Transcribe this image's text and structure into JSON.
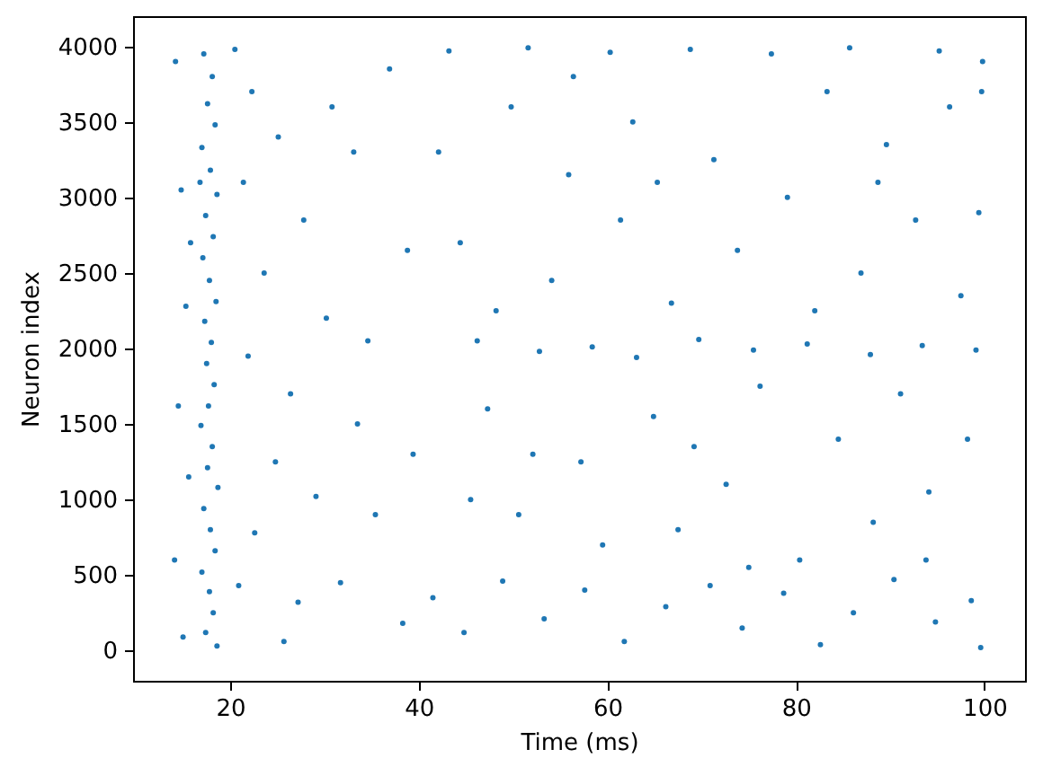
{
  "chart_data": {
    "type": "scatter",
    "xlabel": "Time (ms)",
    "ylabel": "Neuron index",
    "color": "#1f77b4",
    "marker": "circle",
    "x": [
      17.2,
      18.1,
      17.6,
      18.4,
      17.0,
      17.9,
      18.6,
      17.4,
      18.2,
      17.1,
      17.8,
      18.5,
      17.3,
      18.0,
      17.5,
      18.3,
      17.7,
      16.9,
      18.1,
      17.6,
      18.7,
      17.2,
      17.9,
      18.4,
      17.0,
      17.8,
      18.2,
      17.4,
      18.6,
      16.8,
      14.2,
      14.8,
      15.3,
      14.5,
      15.6,
      14.1,
      15.0,
      15.8,
      20.5,
      22.3,
      25.1,
      21.4,
      27.8,
      23.6,
      30.2,
      21.9,
      26.4,
      33.5,
      24.8,
      29.1,
      22.6,
      35.4,
      31.7,
      27.2,
      38.3,
      36.9,
      33.1,
      38.8,
      34.6,
      20.9,
      25.7,
      39.4,
      30.8,
      46.2,
      52.8,
      58.4,
      63.1,
      69.7,
      75.5,
      81.2,
      87.9,
      93.4,
      99.1,
      41.5,
      44.8,
      48.9,
      53.3,
      57.6,
      61.8,
      66.2,
      70.9,
      74.3,
      78.7,
      82.6,
      86.1,
      90.4,
      94.8,
      98.6,
      99.6,
      43.2,
      51.6,
      60.3,
      68.8,
      77.4,
      85.7,
      95.2,
      99.8,
      42.1,
      44.4,
      47.3,
      49.8,
      50.6,
      54.1,
      55.9,
      57.2,
      59.5,
      61.4,
      62.7,
      64.9,
      66.8,
      67.5,
      71.3,
      72.6,
      73.8,
      76.2,
      79.1,
      80.4,
      83.3,
      84.5,
      86.9,
      88.2,
      89.6,
      91.1,
      92.7,
      94.1,
      96.3,
      97.5,
      98.2,
      99.4,
      45.5,
      48.2,
      56.4,
      65.3,
      75.0,
      82.0,
      88.7,
      93.8,
      99.7,
      52.1,
      69.2
    ],
    "values": [
      3950,
      3800,
      3620,
      3480,
      3330,
      3180,
      3020,
      2880,
      2740,
      2600,
      2450,
      2310,
      2180,
      2040,
      1900,
      1760,
      1620,
      1490,
      1350,
      1210,
      1080,
      940,
      800,
      660,
      520,
      390,
      250,
      120,
      30,
      3100,
      3900,
      3050,
      2280,
      1620,
      1150,
      600,
      90,
      2700,
      3980,
      3700,
      3400,
      3100,
      2850,
      2500,
      2200,
      1950,
      1700,
      1500,
      1250,
      1020,
      780,
      900,
      450,
      320,
      180,
      3850,
      3300,
      2650,
      2050,
      430,
      60,
      1300,
      3600,
      2050,
      1980,
      2010,
      1940,
      2060,
      1990,
      2030,
      1960,
      2020,
      1990,
      350,
      120,
      460,
      210,
      400,
      60,
      290,
      430,
      150,
      380,
      40,
      250,
      470,
      190,
      330,
      20,
      3970,
      3990,
      3960,
      3980,
      3950,
      3990,
      3970,
      3900,
      3300,
      2700,
      1600,
      3600,
      900,
      2450,
      3150,
      1250,
      700,
      2850,
      3500,
      1550,
      2300,
      800,
      3250,
      1100,
      2650,
      1750,
      3000,
      600,
      3700,
      1400,
      2500,
      850,
      3350,
      1700,
      2850,
      1050,
      3600,
      2350,
      1400,
      2900,
      1000,
      2250,
      3800,
      3100,
      550,
      2250,
      3100,
      600,
      3700,
      1300,
      1350
    ],
    "xlim": [
      9.7,
      104.3
    ],
    "ylim": [
      -200,
      4200
    ],
    "xticks": [
      20,
      40,
      60,
      80,
      100
    ],
    "yticks": [
      0,
      500,
      1000,
      1500,
      2000,
      2500,
      3000,
      3500,
      4000
    ]
  }
}
